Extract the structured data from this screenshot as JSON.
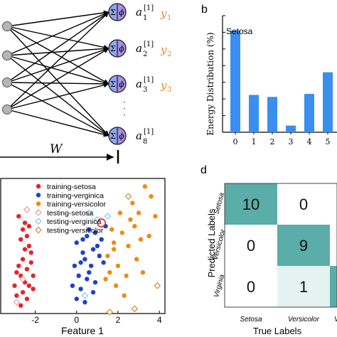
{
  "panel_a": {
    "neurons": [
      {
        "sup": "[1]",
        "sub": "1",
        "out": "y",
        "out_sub": "1"
      },
      {
        "sup": "[1]",
        "sub": "2",
        "out": "y",
        "out_sub": "2"
      },
      {
        "sup": "[1]",
        "sub": "3",
        "out": "y",
        "out_sub": "3"
      },
      {
        "sup": "[1]",
        "sub": "8",
        "out": "",
        "out_sub": ""
      }
    ],
    "neuron_symbol_sigma": "Σ",
    "neuron_symbol_phi": "ϕ",
    "activation_letter": "a",
    "ellipsis": "·\n·\n·",
    "weight_label": "W",
    "output_color": "#e8872b"
  },
  "panel_b": {
    "letter": "b",
    "chart_data": {
      "type": "bar",
      "categories": [
        "0",
        "1",
        "2",
        "3",
        "4",
        "5"
      ],
      "values": [
        30.5,
        11.2,
        10.6,
        2.0,
        11.5,
        18.0
      ],
      "ylabel": "Energy Distribution (%)",
      "annotation": "Setosa",
      "ylim": [
        0,
        35
      ],
      "yticks": [
        0,
        5,
        10,
        15,
        20,
        25,
        30,
        35
      ],
      "bar_color": "#3a8ef0"
    }
  },
  "panel_c": {
    "chart_data": {
      "type": "scatter",
      "xlabel": "Feature 1",
      "xticks": [
        "-2",
        "0",
        "2",
        "4"
      ],
      "xlim": [
        -3.6,
        4.2
      ],
      "ylim": [
        -2.0,
        2.0
      ],
      "legend": [
        {
          "name": "training-setosa",
          "marker": "dot",
          "color": "#e8232a"
        },
        {
          "name": "training-verginica",
          "marker": "dot",
          "color": "#1f3fd0"
        },
        {
          "name": "training-versicolor",
          "marker": "dot",
          "color": "#f08a10"
        },
        {
          "name": "testing-setosa",
          "marker": "diamond",
          "color": "#f29a9a"
        },
        {
          "name": "testing-verginica",
          "marker": "diamond",
          "color": "#7ec8f0"
        },
        {
          "name": "testing-versicolor",
          "marker": "diamond",
          "color": "#d08a2a"
        }
      ],
      "series": [
        {
          "name": "training-setosa",
          "points": [
            [
              -2.8,
              0.9
            ],
            [
              -2.6,
              0.5
            ],
            [
              -2.4,
              0.3
            ],
            [
              -2.7,
              0.2
            ],
            [
              -2.5,
              -0.1
            ],
            [
              -2.3,
              0.0
            ],
            [
              -2.6,
              -0.4
            ],
            [
              -2.8,
              -0.6
            ],
            [
              -2.4,
              -0.7
            ],
            [
              -2.2,
              -0.5
            ],
            [
              -2.7,
              -0.9
            ],
            [
              -2.5,
              -1.1
            ],
            [
              -3.0,
              -1.2
            ],
            [
              -2.9,
              -1.5
            ],
            [
              -2.3,
              -1.2
            ],
            [
              -2.6,
              -1.4
            ],
            [
              -2.1,
              -0.9
            ],
            [
              -2.4,
              -1.6
            ],
            [
              -2.2,
              -0.2
            ],
            [
              -2.9,
              -0.8
            ],
            [
              -2.5,
              0.7
            ],
            [
              -2.3,
              0.6
            ],
            [
              -2.7,
              -1.8
            ],
            [
              -2.1,
              -1.3
            ]
          ]
        },
        {
          "name": "training-verginica",
          "points": [
            [
              0.0,
              0.1
            ],
            [
              0.3,
              -0.2
            ],
            [
              0.5,
              0.3
            ],
            [
              0.2,
              -0.5
            ],
            [
              0.6,
              -0.8
            ],
            [
              0.4,
              -0.4
            ],
            [
              0.8,
              -0.1
            ],
            [
              0.9,
              0.4
            ],
            [
              1.0,
              0.0
            ],
            [
              0.7,
              -0.6
            ],
            [
              1.1,
              -0.3
            ],
            [
              0.5,
              -1.0
            ],
            [
              0.2,
              -1.3
            ],
            [
              0.0,
              -1.6
            ],
            [
              -0.2,
              -1.2
            ],
            [
              0.9,
              -1.1
            ],
            [
              1.2,
              0.2
            ],
            [
              1.3,
              -0.5
            ],
            [
              0.3,
              0.2
            ],
            [
              0.6,
              0.5
            ],
            [
              1.4,
              0.6
            ],
            [
              0.1,
              -0.9
            ],
            [
              0.8,
              -1.4
            ],
            [
              -0.1,
              -0.6
            ],
            [
              0.4,
              -1.7
            ]
          ]
        },
        {
          "name": "training-versicolor",
          "points": [
            [
              1.5,
              -0.3
            ],
            [
              1.8,
              0.1
            ],
            [
              2.0,
              -0.6
            ],
            [
              2.2,
              0.4
            ],
            [
              2.5,
              0.0
            ],
            [
              2.8,
              0.6
            ],
            [
              3.0,
              1.0
            ],
            [
              3.3,
              1.8
            ],
            [
              3.6,
              1.5
            ],
            [
              3.8,
              0.9
            ],
            [
              2.4,
              -0.9
            ],
            [
              1.9,
              -1.2
            ],
            [
              1.6,
              -0.8
            ],
            [
              2.6,
              0.8
            ],
            [
              3.1,
              0.2
            ],
            [
              1.7,
              0.5
            ],
            [
              2.1,
              1.0
            ],
            [
              2.9,
              -0.4
            ],
            [
              3.5,
              0.3
            ],
            [
              1.4,
              -1.0
            ],
            [
              2.3,
              -1.5
            ],
            [
              1.8,
              -0.1
            ],
            [
              2.7,
              1.3
            ],
            [
              3.2,
              -0.8
            ]
          ]
        },
        {
          "name": "testing-setosa",
          "points": [
            [
              -2.4,
              1.1
            ],
            [
              -2.9,
              -1.7
            ],
            [
              -2.6,
              -1.0
            ]
          ]
        },
        {
          "name": "testing-verginica",
          "points": [
            [
              0.6,
              1.0
            ],
            [
              1.0,
              0.8
            ],
            [
              1.5,
              0.9
            ],
            [
              0.4,
              -1.5
            ]
          ]
        },
        {
          "name": "testing-versicolor",
          "points": [
            [
              1.6,
              -2.0
            ],
            [
              2.8,
              -1.9
            ],
            [
              3.9,
              -1.2
            ],
            [
              2.5,
              1.5
            ]
          ]
        }
      ],
      "highlight": {
        "x": 1.2,
        "y": 0.7,
        "color": "#e8232a"
      }
    }
  },
  "panel_d": {
    "letter": "d",
    "chart_data": {
      "type": "heatmap",
      "xlabel": "True Labels",
      "ylabel": "Predicted Labels",
      "x_categories": [
        "Setosa",
        "Versicolor",
        "V"
      ],
      "y_categories": [
        "Setosa",
        "Versicolor",
        "Virginia"
      ],
      "cells": [
        [
          {
            "value": "10",
            "shade": "#5aada8"
          },
          {
            "value": "0",
            "shade": "#ffffff"
          },
          {
            "value": "",
            "shade": "#ffffff"
          }
        ],
        [
          {
            "value": "0",
            "shade": "#ffffff"
          },
          {
            "value": "9",
            "shade": "#5aada8"
          },
          {
            "value": "",
            "shade": "#ffffff"
          }
        ],
        [
          {
            "value": "0",
            "shade": "#ffffff"
          },
          {
            "value": "1",
            "shade": "#e4f2f2"
          },
          {
            "value": "",
            "shade": "#5aada8"
          }
        ]
      ]
    }
  }
}
